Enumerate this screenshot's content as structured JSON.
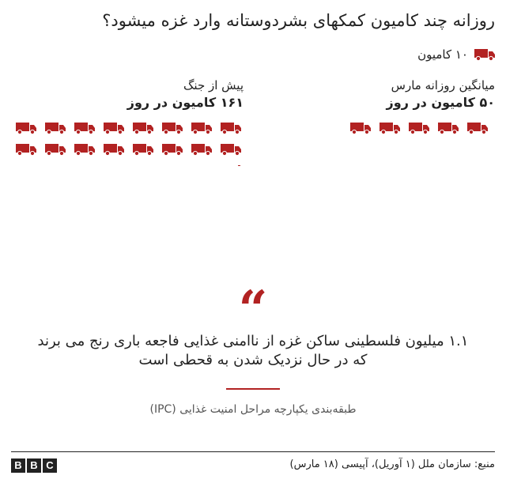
{
  "title": "روزانه چند کامیون کمکهای بشردوستانه وارد غزه میشود؟",
  "legend": {
    "icon": "truck-icon",
    "label": "۱۰ کامیون",
    "units_per_icon": 10
  },
  "colors": {
    "accent": "#B22222",
    "text": "#222222"
  },
  "chart_data": {
    "type": "pictograph",
    "units_per_icon": 10,
    "series": [
      {
        "label": "میانگین روزانه مارس",
        "value_label": "۵۰ کامیون در روز",
        "value": 50
      },
      {
        "label": "پیش از جنگ",
        "value_label": "۱۶۱ کامیون در روز",
        "value": 161
      }
    ]
  },
  "quote": {
    "mark": "“",
    "text": "۱.۱ میلیون  فلسطینی ساکن غزه از ناامنی غذایی فاجعه باری رنج می برند که در حال نزدیک شدن به قحطی است",
    "attribution": "طبقه‌بندی یکپارچه مراحل امنیت غذایی (IPC)"
  },
  "footer": {
    "source": "منبع: سازمان ملل (۱ آوریل)، آپیسی (۱۸ مارس)",
    "logo_letters": [
      "B",
      "B",
      "C"
    ]
  }
}
